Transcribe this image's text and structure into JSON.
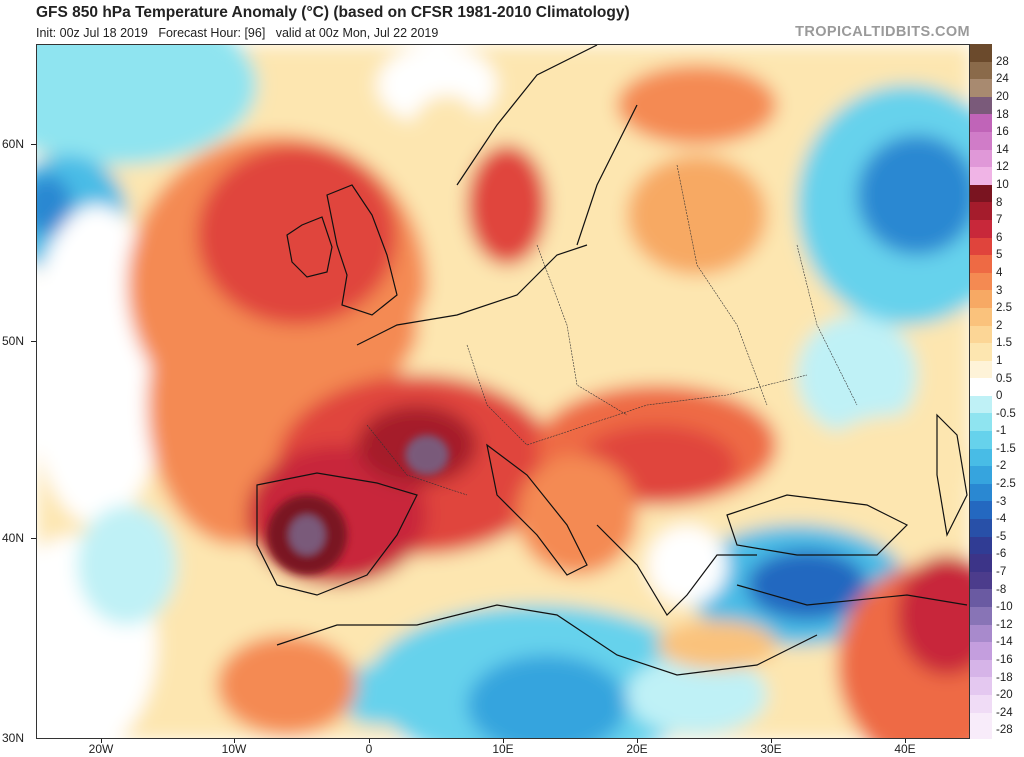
{
  "header": {
    "title": "GFS 850 hPa Temperature Anomaly (°C) (based on CFSR 1981-2010 Climatology)",
    "init": "Init: 00z Jul 18 2019",
    "forecast_hour": "Forecast Hour: [96]",
    "valid": "valid at 00z Mon, Jul 22 2019",
    "brand": "TROPICALTIDBITS.COM"
  },
  "axes": {
    "lat_labels": [
      "60N",
      "50N",
      "40N",
      "30N"
    ],
    "lon_labels": [
      "20W",
      "10W",
      "0",
      "10E",
      "20E",
      "30E",
      "40E"
    ]
  },
  "colorbar": {
    "levels": [
      "28",
      "24",
      "20",
      "18",
      "16",
      "14",
      "12",
      "10",
      "8",
      "7",
      "6",
      "5",
      "4",
      "3",
      "2.5",
      "2",
      "1.5",
      "1",
      "0.5",
      "0",
      "-0.5",
      "-1",
      "-1.5",
      "-2",
      "-2.5",
      "-3",
      "-4",
      "-5",
      "-6",
      "-7",
      "-8",
      "-10",
      "-12",
      "-14",
      "-16",
      "-18",
      "-20",
      "-24",
      "-28"
    ],
    "colors": [
      "#6b4a2c",
      "#8a6a4a",
      "#a88a70",
      "#7a5a7a",
      "#c064b8",
      "#d07cc8",
      "#e098d8",
      "#f0b4e6",
      "#7a1420",
      "#a51c2c",
      "#c8283a",
      "#e0443c",
      "#ee6a44",
      "#f48a52",
      "#f7a964",
      "#fac27c",
      "#fcd696",
      "#fde6b0",
      "#fef3d8",
      "#ffffff",
      "#bff1f6",
      "#8fe4f0",
      "#66d2ec",
      "#48bce6",
      "#36a4de",
      "#2a88d2",
      "#2468c0",
      "#2850a8",
      "#303c94",
      "#3c3488",
      "#4c3c8c",
      "#6a5aa2",
      "#8874b6",
      "#a88acc",
      "#c49ede",
      "#d6b4e8",
      "#e4c8f0",
      "#f0dcf6",
      "#f8ecfa"
    ]
  },
  "map": {
    "variable": "850 hPa temperature anomaly",
    "units": "°C",
    "lat_range": [
      30,
      65
    ],
    "lon_range": [
      -25,
      45
    ]
  }
}
